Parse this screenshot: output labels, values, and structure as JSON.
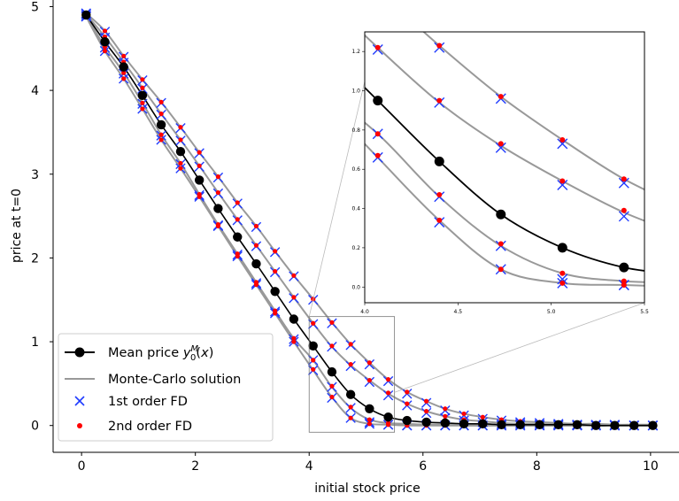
{
  "chart_data": {
    "type": "scatter",
    "xlabel": "initial stock price",
    "ylabel": "price at t=0",
    "xlim": [
      -0.5,
      10.5
    ],
    "ylim": [
      -0.32,
      5.1
    ],
    "xticks": [
      0,
      2,
      4,
      6,
      8,
      10
    ],
    "xtick_labels": [
      "0",
      "2",
      "4",
      "6",
      "8",
      "10"
    ],
    "yticks": [
      0,
      1,
      2,
      3,
      4,
      5
    ],
    "ytick_labels": [
      "0",
      "1",
      "2",
      "3",
      "4",
      "5"
    ],
    "grid": false,
    "legend_position": "lower-left",
    "x": [
      0.08,
      0.41,
      0.74,
      1.07,
      1.4,
      1.74,
      2.07,
      2.4,
      2.74,
      3.07,
      3.4,
      3.73,
      4.07,
      4.4,
      4.73,
      5.06,
      5.39,
      5.72,
      6.06,
      6.39,
      6.72,
      7.05,
      7.38,
      7.71,
      8.05,
      8.38,
      8.71,
      9.04,
      9.37,
      9.71,
      10.04
    ],
    "series": [
      {
        "name": "Mean price $y_0^M(x)$",
        "legend_label": "Mean price",
        "color": "#000000",
        "marker": "filled-circle",
        "values": [
          4.9,
          4.58,
          4.28,
          3.94,
          3.59,
          3.27,
          2.93,
          2.59,
          2.25,
          1.93,
          1.6,
          1.27,
          0.95,
          0.64,
          0.37,
          0.2,
          0.1,
          0.06,
          0.04,
          0.03,
          0.02,
          0.02,
          0.01,
          0.01,
          0.01,
          0.01,
          0.01,
          0.0,
          0.0,
          0.0,
          0.0
        ]
      },
      {
        "name": "Monte-Carlo solution",
        "color": "#999999",
        "curves": [
          [
            4.92,
            4.71,
            4.41,
            4.13,
            3.86,
            3.56,
            3.26,
            2.97,
            2.66,
            2.38,
            2.08,
            1.79,
            1.51,
            1.23,
            0.97,
            0.75,
            0.55,
            0.4,
            0.29,
            0.2,
            0.14,
            0.1,
            0.07,
            0.05,
            0.04,
            0.03,
            0.02,
            0.02,
            0.01,
            0.01,
            0.01
          ],
          [
            4.91,
            4.64,
            4.34,
            4.03,
            3.72,
            3.41,
            3.1,
            2.78,
            2.46,
            2.15,
            1.84,
            1.53,
            1.22,
            0.94,
            0.72,
            0.54,
            0.38,
            0.26,
            0.17,
            0.11,
            0.07,
            0.05,
            0.03,
            0.02,
            0.02,
            0.01,
            0.01,
            0.01,
            0.01,
            0.0,
            0.0
          ],
          [
            4.89,
            4.52,
            4.21,
            3.85,
            3.47,
            3.13,
            2.76,
            2.4,
            2.05,
            1.71,
            1.37,
            1.04,
            0.78,
            0.46,
            0.21,
            0.07,
            0.03,
            0.02,
            0.01,
            0.01,
            0.0,
            0.0,
            0.0,
            0.0,
            0.0,
            0.0,
            0.0,
            0.0,
            0.0,
            0.0,
            0.0
          ],
          [
            4.88,
            4.47,
            4.14,
            3.78,
            3.41,
            3.07,
            2.73,
            2.38,
            2.02,
            1.68,
            1.34,
            1.0,
            0.66,
            0.34,
            0.09,
            0.02,
            0.01,
            0.0,
            0.0,
            0.0,
            0.0,
            0.0,
            0.0,
            0.0,
            0.0,
            0.0,
            0.0,
            0.0,
            0.0,
            0.0,
            0.0
          ]
        ]
      },
      {
        "name": "1st order FD",
        "color": "#1f3bff",
        "marker": "x",
        "curves": [
          [
            4.92,
            4.7,
            4.4,
            4.12,
            3.85,
            3.55,
            3.25,
            2.96,
            2.65,
            2.37,
            2.07,
            1.78,
            1.5,
            1.22,
            0.96,
            0.73,
            0.53,
            0.38,
            0.27,
            0.18,
            0.12,
            0.08,
            0.06,
            0.04,
            0.03,
            0.02,
            0.01,
            0.01,
            0.01,
            0.0,
            0.0
          ],
          [
            4.91,
            4.63,
            4.33,
            4.02,
            3.71,
            3.4,
            3.09,
            2.77,
            2.45,
            2.14,
            1.83,
            1.52,
            1.21,
            0.94,
            0.71,
            0.52,
            0.36,
            0.24,
            0.15,
            0.09,
            0.06,
            0.04,
            0.02,
            0.02,
            0.01,
            0.01,
            0.01,
            0.0,
            0.0,
            0.0,
            0.0
          ],
          [
            4.89,
            4.51,
            4.2,
            3.84,
            3.46,
            3.12,
            2.75,
            2.39,
            2.04,
            1.7,
            1.36,
            1.03,
            0.78,
            0.46,
            0.21,
            0.04,
            0.01,
            0.0,
            0.0,
            0.0,
            0.0,
            0.0,
            0.0,
            0.0,
            0.0,
            0.0,
            0.0,
            0.0,
            0.0,
            0.0,
            0.0
          ],
          [
            4.88,
            4.47,
            4.14,
            3.78,
            3.41,
            3.07,
            2.73,
            2.38,
            2.02,
            1.68,
            1.34,
            1.0,
            0.66,
            0.33,
            0.09,
            0.02,
            0.01,
            0.0,
            0.0,
            0.0,
            0.0,
            0.0,
            0.0,
            0.0,
            0.0,
            0.0,
            0.0,
            0.0,
            0.0,
            0.0,
            0.0
          ]
        ]
      },
      {
        "name": "2nd order FD",
        "color": "#ff0000",
        "marker": "dot",
        "curves": [
          [
            4.92,
            4.71,
            4.41,
            4.13,
            3.86,
            3.56,
            3.26,
            2.97,
            2.66,
            2.38,
            2.08,
            1.79,
            1.51,
            1.23,
            0.97,
            0.75,
            0.55,
            0.4,
            0.29,
            0.2,
            0.14,
            0.1,
            0.07,
            0.05,
            0.04,
            0.03,
            0.02,
            0.02,
            0.01,
            0.01,
            0.01
          ],
          [
            4.91,
            4.64,
            4.34,
            4.03,
            3.72,
            3.41,
            3.1,
            2.78,
            2.46,
            2.15,
            1.84,
            1.53,
            1.22,
            0.95,
            0.73,
            0.54,
            0.39,
            0.26,
            0.17,
            0.11,
            0.07,
            0.05,
            0.03,
            0.02,
            0.02,
            0.01,
            0.01,
            0.01,
            0.01,
            0.0,
            0.0
          ],
          [
            4.89,
            4.52,
            4.21,
            3.85,
            3.47,
            3.13,
            2.76,
            2.4,
            2.05,
            1.71,
            1.37,
            1.04,
            0.78,
            0.47,
            0.22,
            0.07,
            0.03,
            0.02,
            0.01,
            0.01,
            0.0,
            0.0,
            0.0,
            0.0,
            0.0,
            0.0,
            0.0,
            0.0,
            0.0,
            0.0,
            0.0
          ],
          [
            4.88,
            4.47,
            4.14,
            3.78,
            3.41,
            3.07,
            2.73,
            2.38,
            2.02,
            1.68,
            1.34,
            1.0,
            0.67,
            0.34,
            0.09,
            0.02,
            0.01,
            0.0,
            0.0,
            0.0,
            0.0,
            0.0,
            0.0,
            0.0,
            0.0,
            0.0,
            0.0,
            0.0,
            0.0,
            0.0,
            0.0
          ]
        ]
      }
    ],
    "inset": {
      "xlim": [
        4.0,
        5.5
      ],
      "ylim": [
        -0.08,
        1.3
      ],
      "xticks": [
        4.0,
        4.5,
        5.0,
        5.5
      ],
      "xtick_labels": [
        "4.0",
        "4.5",
        "5.0",
        "5.5"
      ],
      "yticks": [
        0.0,
        0.2,
        0.4,
        0.6,
        0.8,
        1.0,
        1.2
      ],
      "ytick_labels": [
        "0.0",
        "0.2",
        "0.4",
        "0.6",
        "0.8",
        "1.0",
        "1.2"
      ]
    }
  }
}
